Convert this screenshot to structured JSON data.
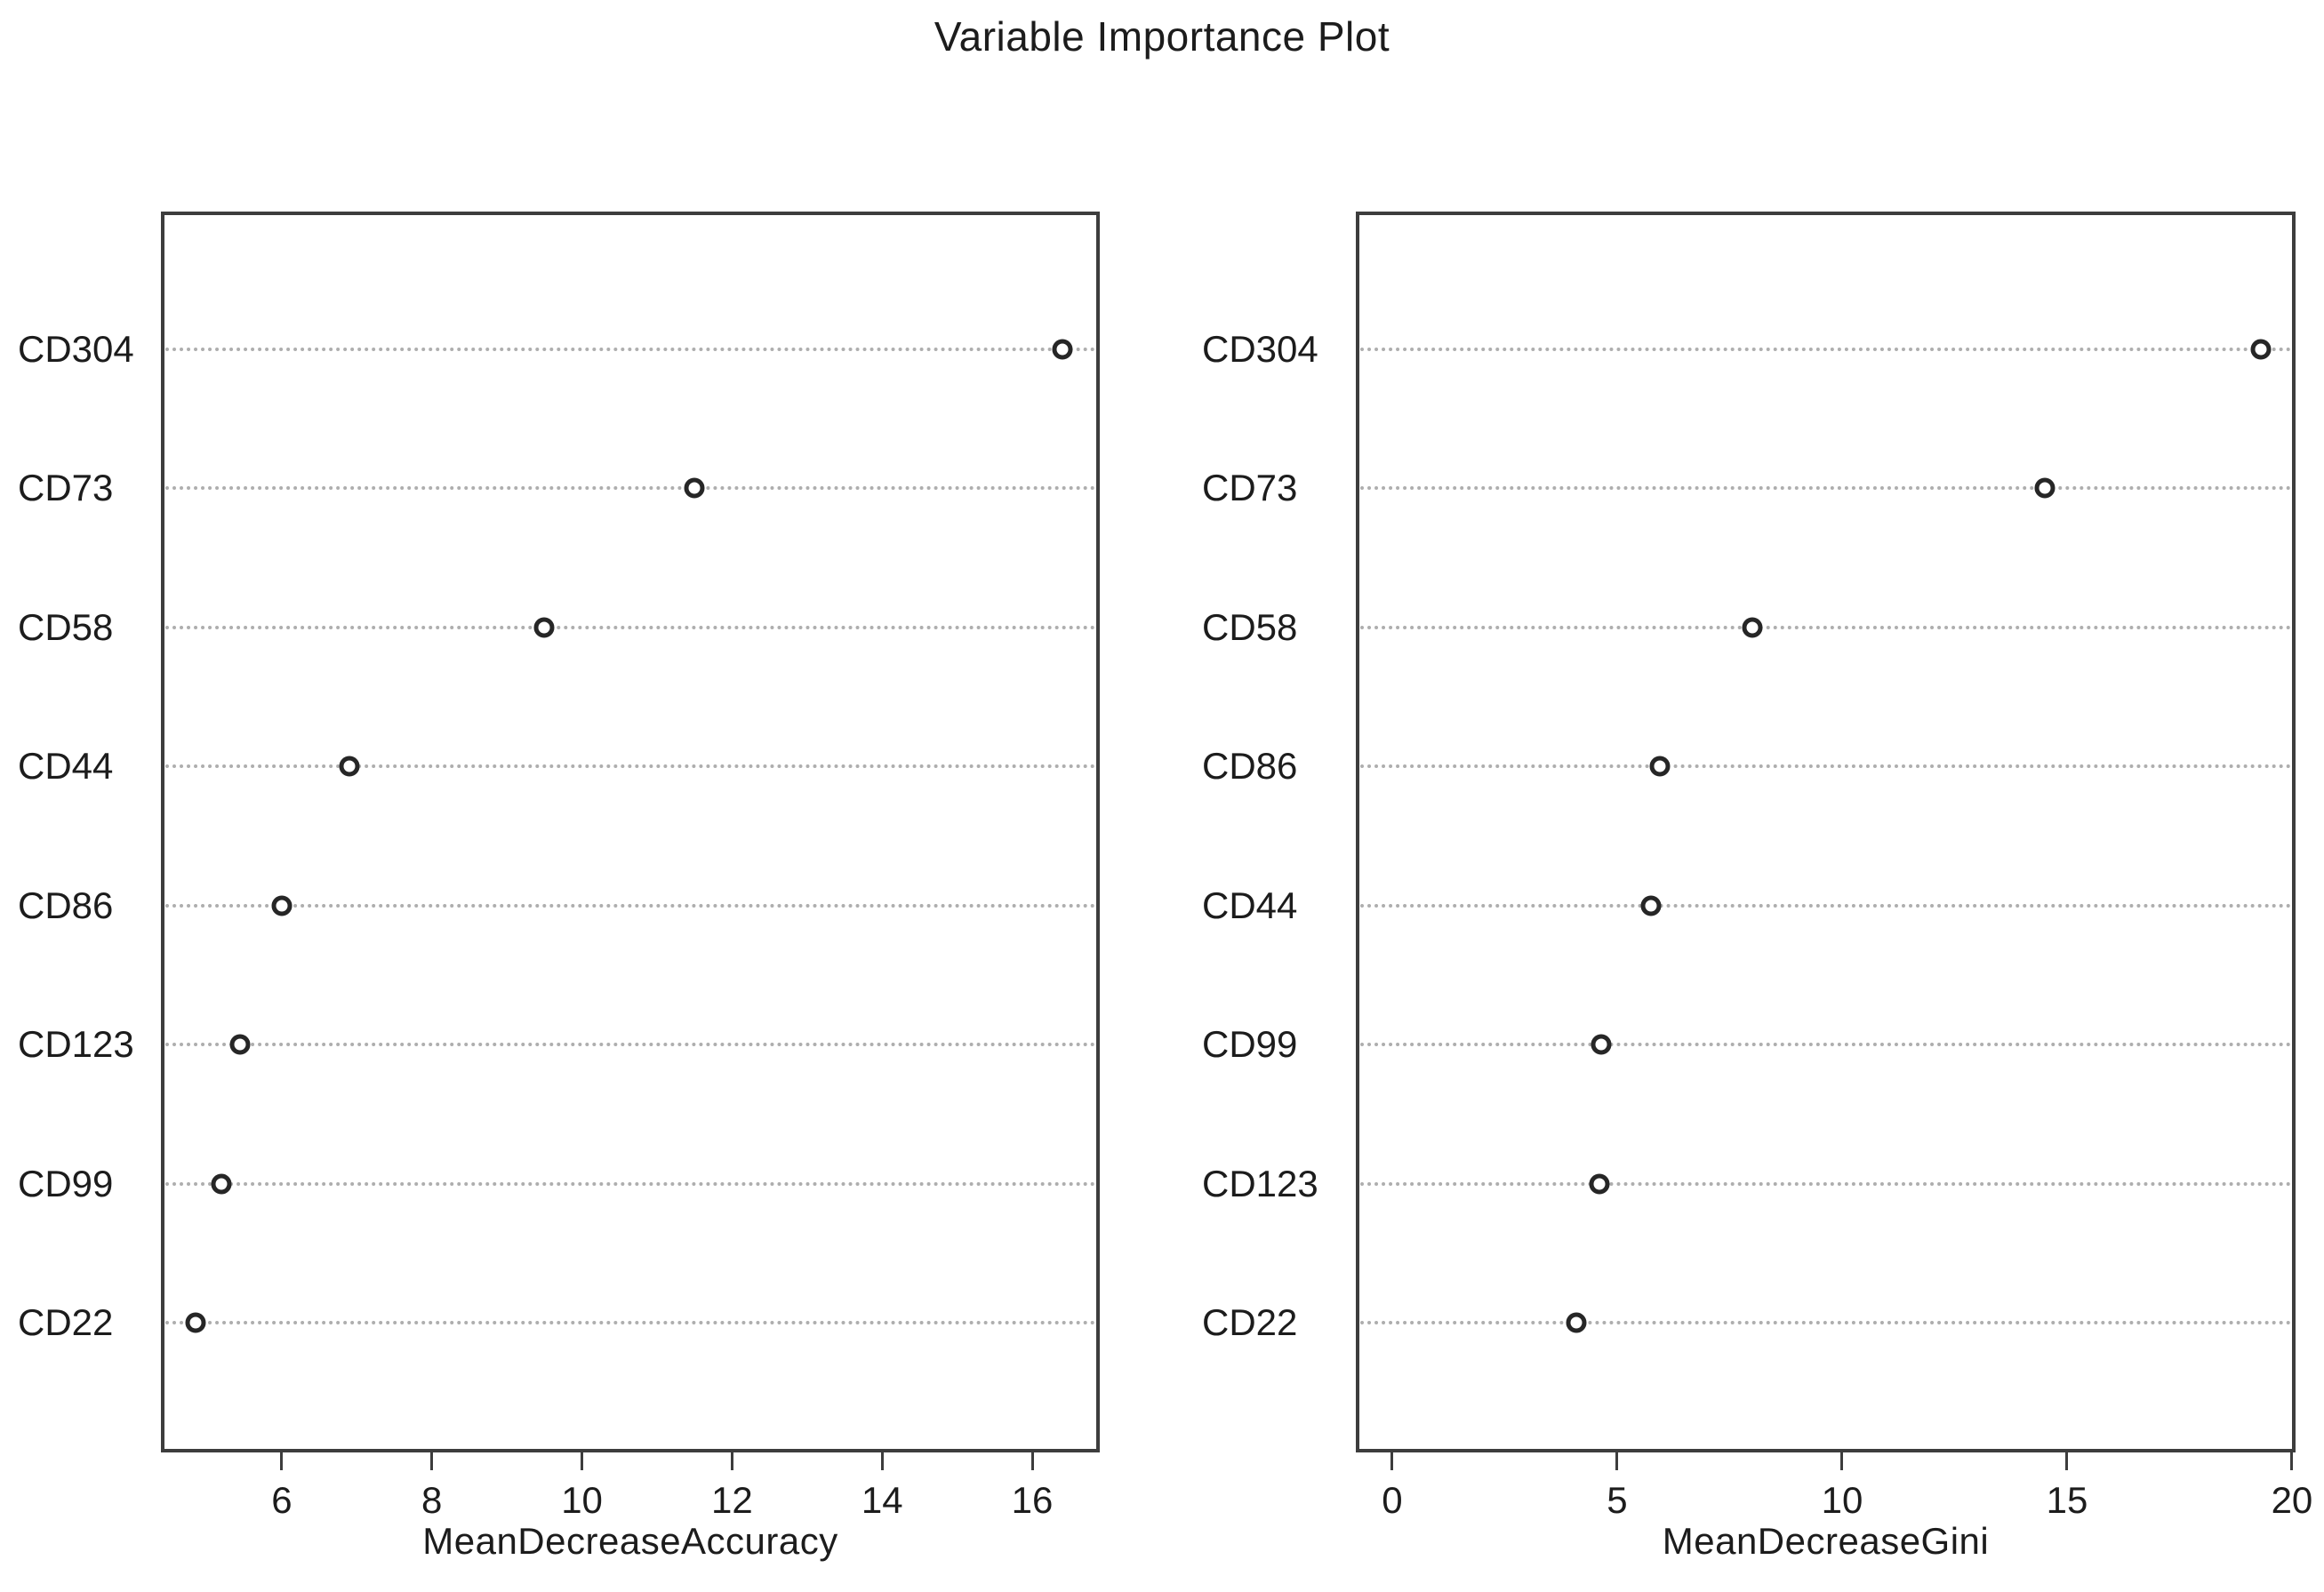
{
  "chart_data": [
    {
      "type": "scatter",
      "subtype": "dot-chart",
      "title": "Variable Importance Plot",
      "xlabel": "MeanDecreaseAccuracy",
      "ylabel": "",
      "categories": [
        "CD304",
        "CD73",
        "CD58",
        "CD44",
        "CD86",
        "CD123",
        "CD99",
        "CD22"
      ],
      "values": [
        16.4,
        11.5,
        9.5,
        6.9,
        6.0,
        5.45,
        5.2,
        4.85
      ],
      "x_ticks": [
        6,
        8,
        10,
        12,
        14,
        16
      ],
      "xlim": [
        4.39,
        16.9
      ],
      "grid": "horizontal dotted line per category",
      "legend": "none",
      "point_marker": "open-circle"
    },
    {
      "type": "scatter",
      "subtype": "dot-chart",
      "title": "",
      "xlabel": "MeanDecreaseGini",
      "ylabel": "",
      "categories": [
        "CD304",
        "CD73",
        "CD58",
        "CD86",
        "CD44",
        "CD99",
        "CD123",
        "CD22"
      ],
      "values": [
        19.3,
        14.5,
        8.0,
        5.95,
        5.75,
        4.65,
        4.6,
        4.1
      ],
      "x_ticks": [
        0,
        5,
        10,
        15,
        20
      ],
      "xlim": [
        -0.81,
        20.08
      ],
      "grid": "horizontal dotted line per category",
      "legend": "none",
      "point_marker": "open-circle"
    }
  ],
  "colors": {
    "background": "#ffffff",
    "box_border": "#3d3d3d",
    "grid_dotted": "#aeaeae",
    "point_ring": "#262626",
    "text": "#1c1c1c"
  }
}
